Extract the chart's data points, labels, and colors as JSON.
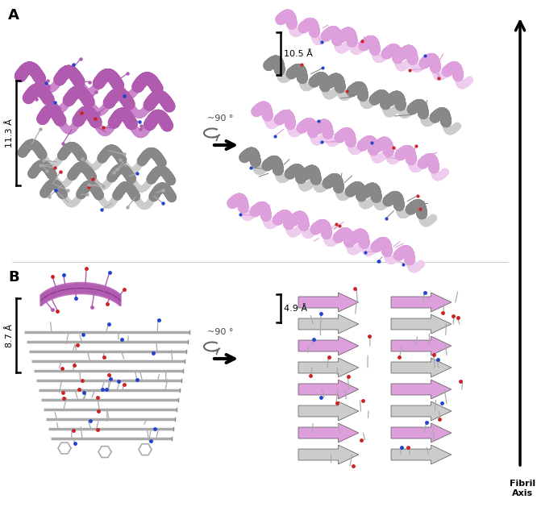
{
  "fig_width": 6.66,
  "fig_height": 6.6,
  "dpi": 100,
  "background_color": "#ffffff",
  "panel_A_label": "A",
  "panel_B_label": "B",
  "label_fontsize": 13,
  "label_fontweight": "bold",
  "dim_A_left": "11.3 Å",
  "dim_A_right": "10.5 Å",
  "dim_B_left": "8.7 Å",
  "dim_B_right": "4.9 Å",
  "rotation_label": "~90 °",
  "fibril_axis_label": "Fibril\nAxis",
  "purple": "#b05ab0",
  "purple_light": "#cc88cc",
  "purple_dark": "#8b3a8b",
  "pink": "#dda0dd",
  "pink_light": "#eeccee",
  "gray_dark": "#888888",
  "gray_mid": "#aaaaaa",
  "gray_light": "#cccccc",
  "gray_vlight": "#e8e8e8",
  "red_atom": "#cc2222",
  "blue_atom": "#2244cc",
  "yellow_atom": "#ccbb00",
  "black": "#000000",
  "annotation_fs": 8,
  "fibril_fs": 8
}
